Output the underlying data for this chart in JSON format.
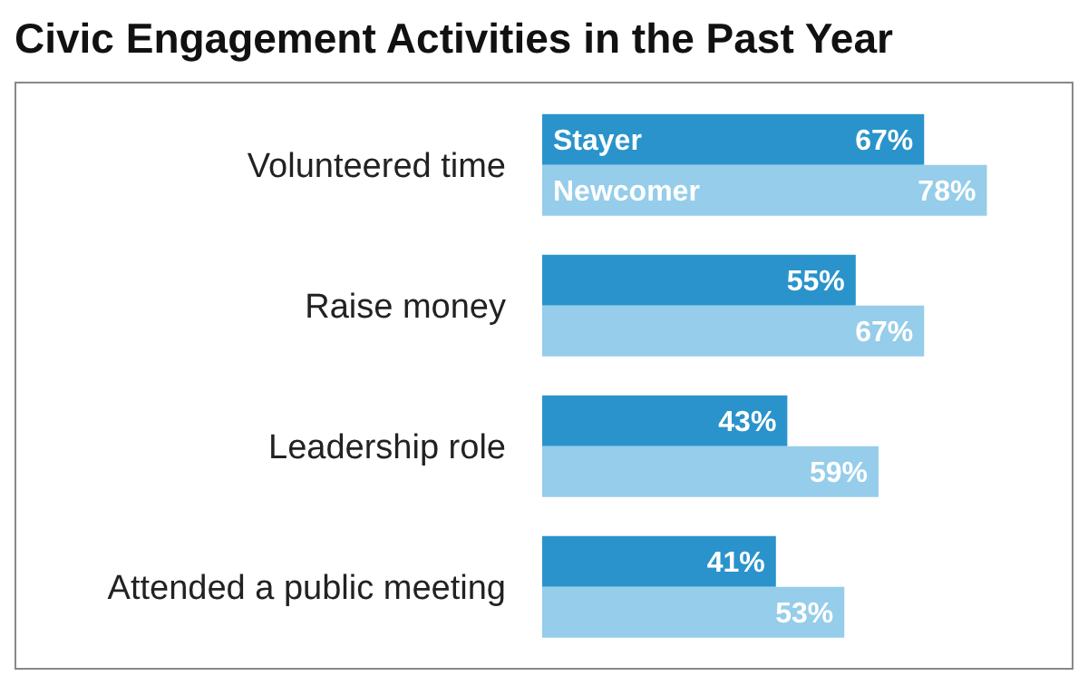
{
  "chart_data": {
    "type": "bar",
    "orientation": "horizontal",
    "title": "Civic Engagement Activities in the Past Year",
    "categories": [
      "Volunteered time",
      "Raise money",
      "Leadership role",
      "Attended a public meeting"
    ],
    "legend": false,
    "grid": false,
    "series": [
      {
        "name": "Stayer",
        "color": "#2a93cb",
        "values": [
          67,
          55,
          43,
          41
        ],
        "value_labels": [
          "67%",
          "55%",
          "43%",
          "41%"
        ]
      },
      {
        "name": "Newcomer",
        "color": "#95cdea",
        "values": [
          78,
          67,
          59,
          53
        ],
        "value_labels": [
          "78%",
          "67%",
          "59%",
          "53%"
        ]
      }
    ]
  }
}
